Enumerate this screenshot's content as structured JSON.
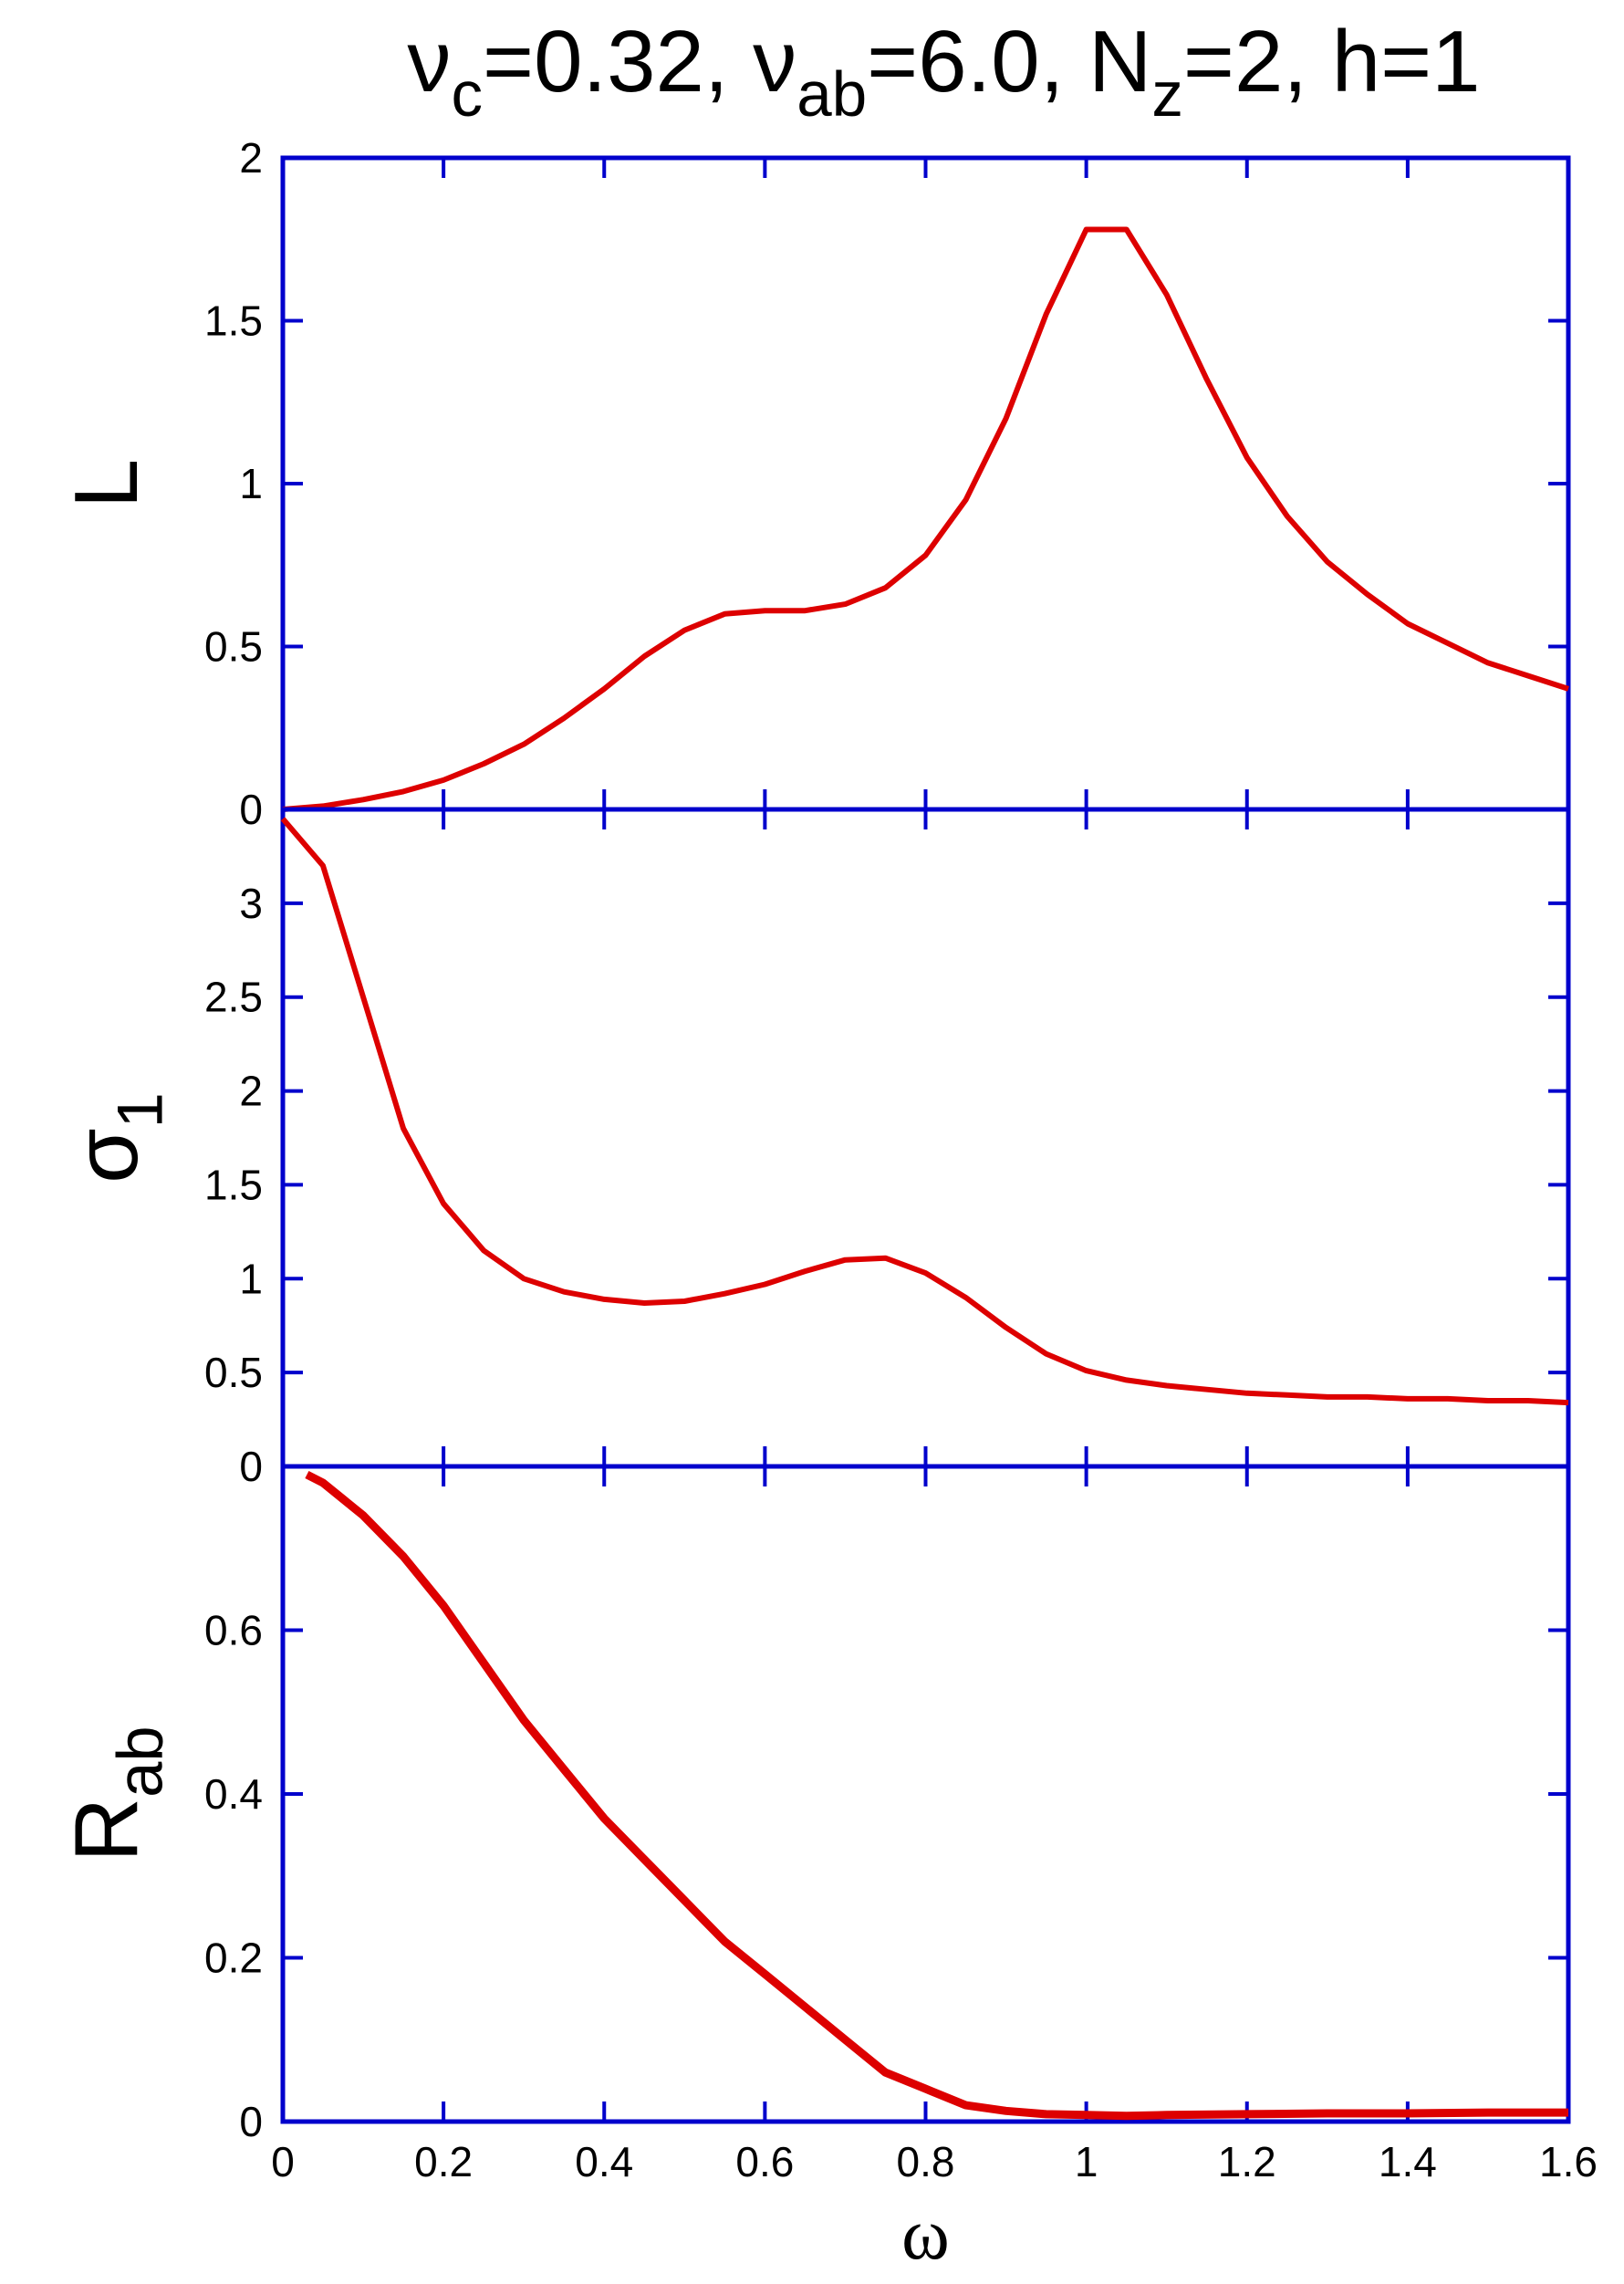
{
  "chart_data": [
    {
      "type": "line",
      "title": [
        "ν",
        "c",
        "=0.32, ν",
        "ab",
        "=6.0, N",
        "z",
        "=2, h=1"
      ],
      "y_label": [
        "L"
      ],
      "x": [
        0,
        0.05,
        0.1,
        0.15,
        0.2,
        0.25,
        0.3,
        0.35,
        0.4,
        0.45,
        0.5,
        0.55,
        0.6,
        0.65,
        0.7,
        0.75,
        0.8,
        0.85,
        0.9,
        0.95,
        1.0,
        1.05,
        1.1,
        1.15,
        1.2,
        1.25,
        1.3,
        1.35,
        1.4,
        1.45,
        1.5,
        1.55,
        1.6
      ],
      "series": [
        {
          "color": "#dd0000",
          "values": [
            0,
            0.01,
            0.03,
            0.055,
            0.09,
            0.14,
            0.2,
            0.28,
            0.37,
            0.47,
            0.55,
            0.6,
            0.61,
            0.61,
            0.63,
            0.68,
            0.78,
            0.95,
            1.2,
            1.52,
            1.78,
            1.78,
            1.58,
            1.32,
            1.08,
            0.9,
            0.76,
            0.66,
            0.57,
            0.51,
            0.45,
            0.41,
            0.37
          ]
        }
      ],
      "ylim": [
        0,
        2
      ],
      "yticks": [
        0,
        0.5,
        1,
        1.5,
        2
      ]
    },
    {
      "type": "line",
      "y_label": [
        "σ",
        "1"
      ],
      "x": [
        0,
        0.05,
        0.1,
        0.15,
        0.2,
        0.25,
        0.3,
        0.35,
        0.4,
        0.45,
        0.5,
        0.55,
        0.6,
        0.65,
        0.7,
        0.75,
        0.8,
        0.85,
        0.9,
        0.95,
        1.0,
        1.05,
        1.1,
        1.15,
        1.2,
        1.25,
        1.3,
        1.35,
        1.4,
        1.45,
        1.5,
        1.55,
        1.6
      ],
      "series": [
        {
          "color": "#dd0000",
          "values": [
            3.45,
            3.2,
            2.5,
            1.8,
            1.4,
            1.15,
            1.0,
            0.93,
            0.89,
            0.87,
            0.88,
            0.92,
            0.97,
            1.04,
            1.1,
            1.11,
            1.03,
            0.9,
            0.74,
            0.6,
            0.51,
            0.46,
            0.43,
            0.41,
            0.39,
            0.38,
            0.37,
            0.37,
            0.36,
            0.36,
            0.35,
            0.35,
            0.34
          ]
        }
      ],
      "ylim": [
        0,
        3.5
      ],
      "yticks": [
        0,
        0.5,
        1,
        1.5,
        2,
        2.5,
        3
      ]
    },
    {
      "type": "line",
      "y_label": [
        "R",
        "ab"
      ],
      "x_label": "ω",
      "x": [
        0.03,
        0.05,
        0.1,
        0.15,
        0.2,
        0.25,
        0.3,
        0.35,
        0.4,
        0.45,
        0.5,
        0.55,
        0.6,
        0.65,
        0.7,
        0.75,
        0.8,
        0.85,
        0.9,
        0.95,
        1.0,
        1.05,
        1.1,
        1.2,
        1.3,
        1.4,
        1.5,
        1.6
      ],
      "series": [
        {
          "color": "#dd0000",
          "values": [
            0.79,
            0.78,
            0.74,
            0.69,
            0.63,
            0.56,
            0.49,
            0.43,
            0.37,
            0.32,
            0.27,
            0.22,
            0.18,
            0.14,
            0.1,
            0.06,
            0.04,
            0.02,
            0.013,
            0.009,
            0.008,
            0.007,
            0.008,
            0.009,
            0.01,
            0.01,
            0.011,
            0.011
          ]
        }
      ],
      "xlim": [
        0,
        1.6
      ],
      "xticks": [
        0,
        0.2,
        0.4,
        0.6,
        0.8,
        1,
        1.2,
        1.4,
        1.6
      ],
      "ylim": [
        0,
        0.8
      ],
      "yticks": [
        0,
        0.2,
        0.4,
        0.6
      ]
    }
  ]
}
